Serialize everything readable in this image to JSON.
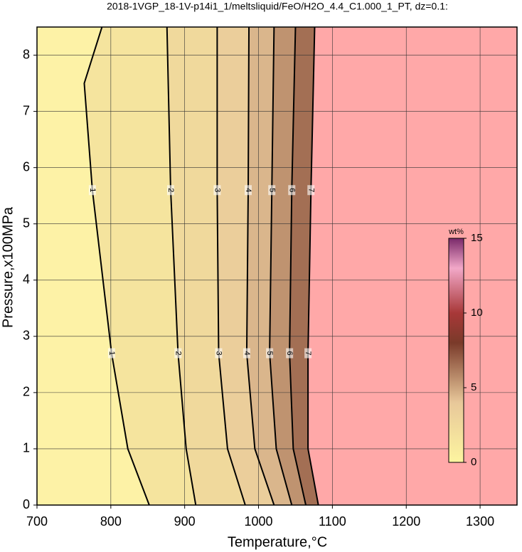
{
  "chart_data": {
    "type": "contour",
    "title": "2018-1VGP_18-1V-p14i1_1/meltsliquid/FeO/H2O_4.4_C1.000_1_PT, dz=0.1:",
    "x_label": "Temperature,°C",
    "y_label": "Pressure,x100MPa",
    "xlim": [
      700,
      1350
    ],
    "xticks": [
      700,
      800,
      900,
      1000,
      1100,
      1200,
      1300
    ],
    "ylim": [
      0,
      8.5
    ],
    "yticks": [
      0,
      1,
      2,
      3,
      4,
      5,
      6,
      7,
      8
    ],
    "grid": true,
    "background_color": "#fdf2a6",
    "nan_color": "#ffa8a8",
    "contours": [
      {
        "level": 1,
        "x": [
          852,
          823,
          801,
          775,
          764,
          788
        ],
        "y": [
          0,
          1,
          2.7,
          5.6,
          7.5,
          8.5
        ]
      },
      {
        "level": 2,
        "x": [
          915,
          902,
          891,
          881,
          876
        ],
        "y": [
          0,
          1,
          2.7,
          5.6,
          8.5
        ]
      },
      {
        "level": 3,
        "x": [
          982,
          958,
          946,
          944,
          944
        ],
        "y": [
          0,
          1,
          2.7,
          5.6,
          8.5
        ]
      },
      {
        "level": 4,
        "x": [
          1021,
          995,
          984,
          986,
          987
        ],
        "y": [
          0,
          1,
          2.7,
          5.6,
          8.5
        ]
      },
      {
        "level": 5,
        "x": [
          1045,
          1024,
          1015,
          1018,
          1021
        ],
        "y": [
          0,
          1,
          2.7,
          5.6,
          8.5
        ]
      },
      {
        "level": 6,
        "x": [
          1064,
          1047,
          1042,
          1045,
          1050
        ],
        "y": [
          0,
          1,
          2.7,
          5.6,
          8.5
        ]
      },
      {
        "level": 7,
        "x": [
          1081,
          1067,
          1067,
          1071,
          1076
        ],
        "y": [
          0,
          1,
          2.7,
          5.6,
          8.5
        ]
      }
    ],
    "colorbar": {
      "label": "wt%",
      "lim": [
        0,
        15
      ],
      "ticks": [
        0,
        5,
        10,
        15
      ],
      "stops": [
        {
          "value": 0,
          "color": "#fdf5a0"
        },
        {
          "value": 4,
          "color": "#e8c89a"
        },
        {
          "value": 8,
          "color": "#7a3a2a"
        },
        {
          "value": 10,
          "color": "#a83838"
        },
        {
          "value": 13,
          "color": "#f2a8c8"
        },
        {
          "value": 15,
          "color": "#7a2a6a"
        }
      ]
    }
  }
}
